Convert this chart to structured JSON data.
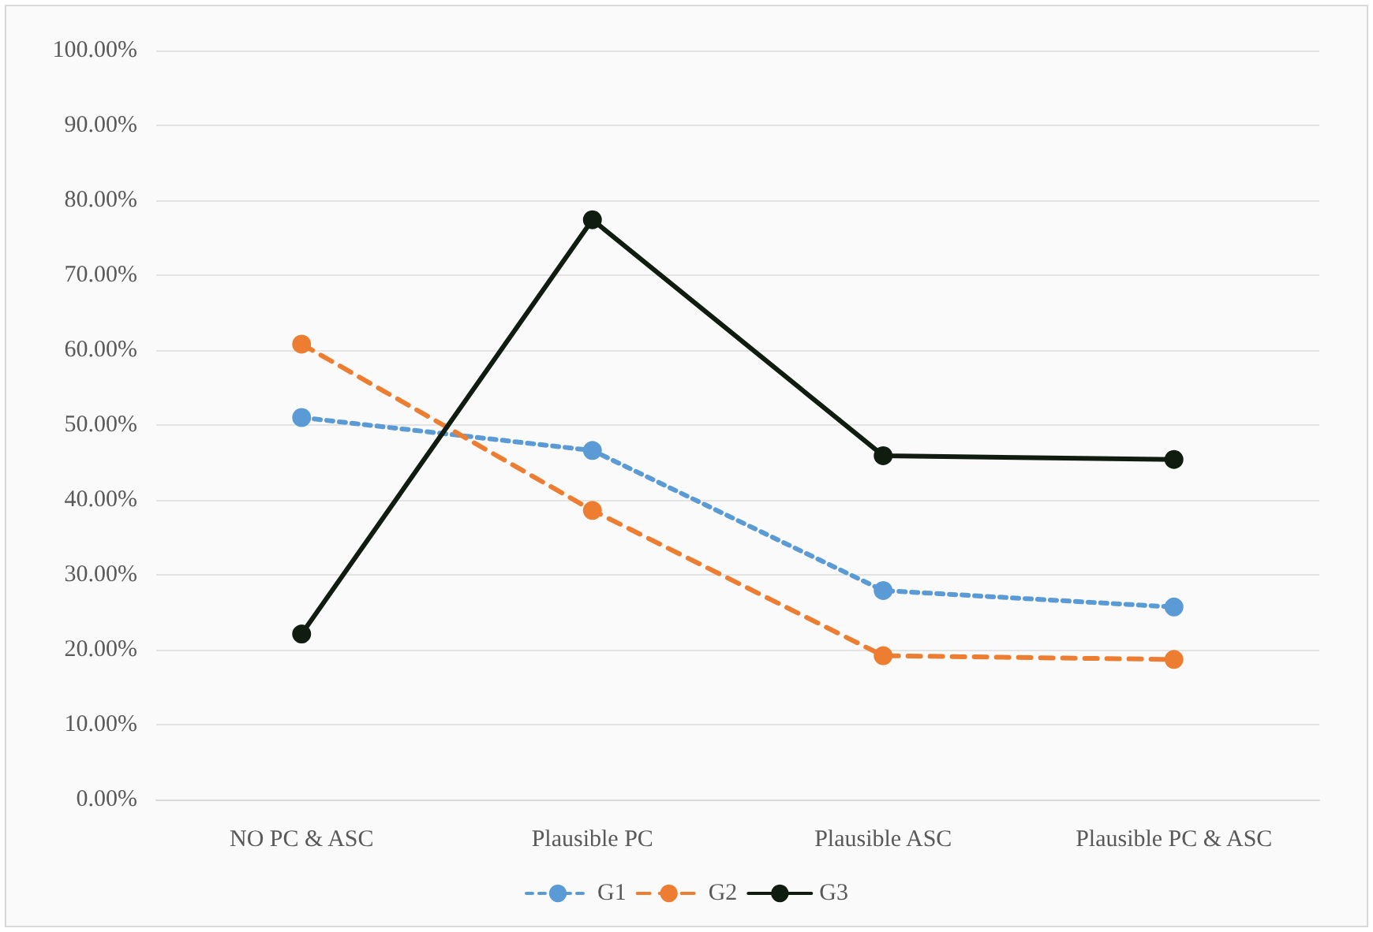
{
  "chart_data": {
    "type": "line",
    "categories": [
      "NO PC & ASC",
      "Plausible PC",
      "Plausible ASC",
      "Plausible PC & ASC"
    ],
    "series": [
      {
        "name": "G1",
        "color": "#5b9bd5",
        "line_style": "dotted",
        "values": [
          51.0,
          46.6,
          27.9,
          25.7
        ]
      },
      {
        "name": "G2",
        "color": "#ed7d31",
        "line_style": "dashed",
        "values": [
          60.8,
          38.6,
          19.2,
          18.7
        ]
      },
      {
        "name": "G3",
        "color": "#0f1c0f",
        "line_style": "solid",
        "values": [
          22.1,
          77.4,
          45.9,
          45.4
        ]
      }
    ],
    "ylim": [
      0,
      100
    ],
    "yticks": [
      {
        "value": 0,
        "label": "0.00%"
      },
      {
        "value": 10,
        "label": "10.00%"
      },
      {
        "value": 20,
        "label": "20.00%"
      },
      {
        "value": 30,
        "label": "30.00%"
      },
      {
        "value": 40,
        "label": "40.00%"
      },
      {
        "value": 50,
        "label": "50.00%"
      },
      {
        "value": 60,
        "label": "60.00%"
      },
      {
        "value": 70,
        "label": "70.00%"
      },
      {
        "value": 80,
        "label": "80.00%"
      },
      {
        "value": 90,
        "label": "90.00%"
      },
      {
        "value": 100,
        "label": "100.00%"
      }
    ],
    "grid": "y",
    "legend": "bottom",
    "marker": "circle"
  }
}
